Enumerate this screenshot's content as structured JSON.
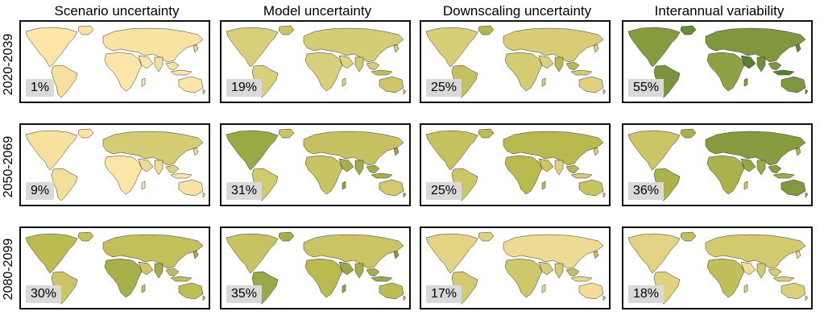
{
  "columns": [
    "Scenario uncertainty",
    "Model uncertainty",
    "Downscaling uncertainty",
    "Interannual variability"
  ],
  "rows": [
    {
      "label": "2020-2039",
      "values": [
        "1%",
        "19%",
        "25%",
        "55%"
      ],
      "shares": [
        1,
        19,
        25,
        55
      ]
    },
    {
      "label": "2050-2069",
      "values": [
        "9%",
        "31%",
        "25%",
        "36%"
      ],
      "shares": [
        9,
        31,
        25,
        36
      ]
    },
    {
      "label": "2080-2099",
      "values": [
        "30%",
        "35%",
        "17%",
        "18%"
      ],
      "shares": [
        30,
        35,
        17,
        18
      ]
    }
  ],
  "colors": {
    "low": "#fde6a8",
    "mid": "#b9b94e",
    "high": "#2f6b2a",
    "ocean": "#ffffff",
    "box": "#d9d9d9"
  }
}
